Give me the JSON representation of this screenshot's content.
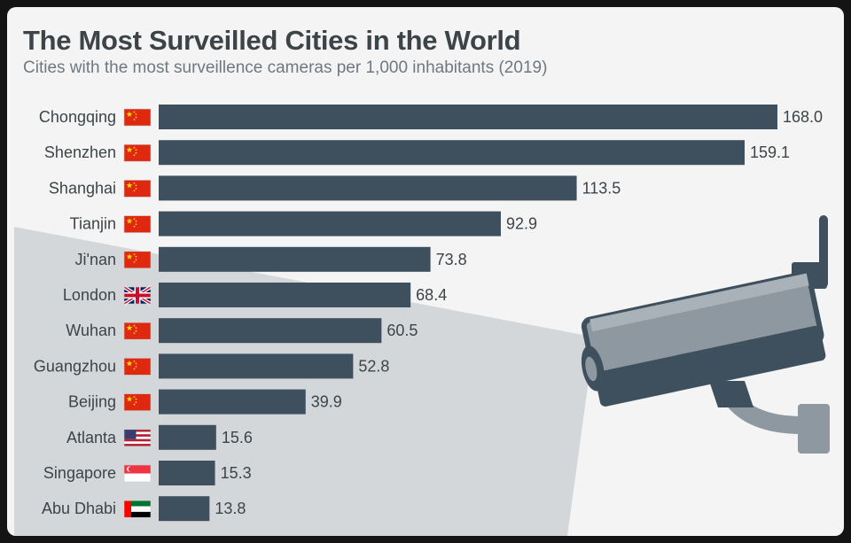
{
  "header": {
    "title": "The Most Surveilled Cities in the World",
    "subtitle": "Cities with the most surveillence cameras per 1,000 inhabitants (2019)"
  },
  "colors": {
    "bar": "#3e4f5e",
    "text": "#3d4448",
    "camera_body": "#8d98a0",
    "camera_dark": "#3e4f5e",
    "beam": "#d4d7d9"
  },
  "chart_data": {
    "type": "bar",
    "orientation": "horizontal",
    "title": "The Most Surveilled Cities in the World",
    "subtitle": "Cities with the most surveillence cameras per 1,000 inhabitants (2019)",
    "xlim": [
      0,
      168
    ],
    "grid": false,
    "categories": [
      "Chongqing",
      "Shenzhen",
      "Shanghai",
      "Tianjin",
      "Ji'nan",
      "London",
      "Wuhan",
      "Guangzhou",
      "Beijing",
      "Atlanta",
      "Singapore",
      "Abu Dhabi"
    ],
    "values": [
      168.0,
      159.1,
      113.5,
      92.9,
      73.8,
      68.4,
      60.5,
      52.8,
      39.9,
      15.6,
      15.3,
      13.8
    ],
    "value_labels": [
      "168.0",
      "159.1",
      "113.5",
      "92.9",
      "73.8",
      "68.4",
      "60.5",
      "52.8",
      "39.9",
      "15.6",
      "15.3",
      "13.8"
    ],
    "flags": [
      "china-flag",
      "china-flag",
      "china-flag",
      "china-flag",
      "china-flag",
      "uk-flag",
      "china-flag",
      "china-flag",
      "china-flag",
      "usa-flag",
      "singapore-flag",
      "uae-flag"
    ]
  },
  "illustration": {
    "icon": "surveillance-camera-icon"
  }
}
